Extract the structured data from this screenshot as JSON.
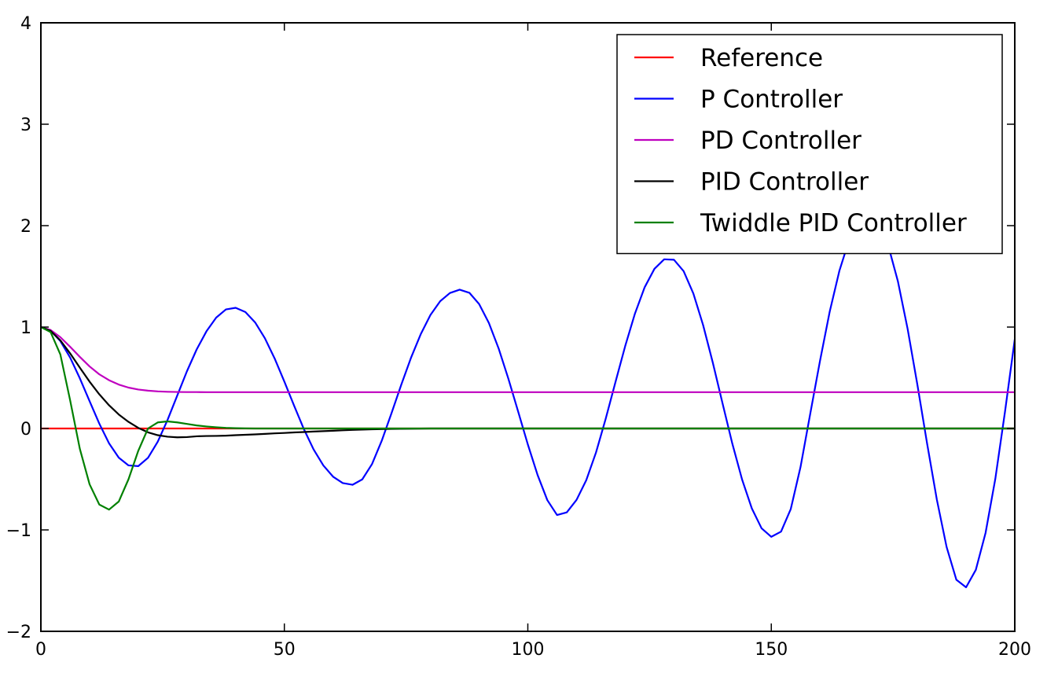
{
  "chart_data": {
    "type": "line",
    "title": "",
    "xlabel": "",
    "ylabel": "",
    "xlim": [
      0,
      200
    ],
    "ylim": [
      -2,
      4
    ],
    "xticks": [
      0,
      50,
      100,
      150,
      200
    ],
    "xtick_labels": [
      "0",
      "50",
      "100",
      "150",
      "200"
    ],
    "yticks": [
      -2,
      -1,
      0,
      1,
      2,
      3,
      4
    ],
    "ytick_labels": [
      "−2",
      "−1",
      "0",
      "1",
      "2",
      "3",
      "4"
    ],
    "grid": false,
    "legend_position": "top-right",
    "x": [
      0,
      2,
      4,
      6,
      8,
      10,
      12,
      14,
      16,
      18,
      20,
      22,
      24,
      26,
      28,
      30,
      32,
      34,
      36,
      38,
      40,
      42,
      44,
      46,
      48,
      50,
      52,
      54,
      56,
      58,
      60,
      62,
      64,
      66,
      68,
      70,
      72,
      74,
      76,
      78,
      80,
      82,
      84,
      86,
      88,
      90,
      92,
      94,
      96,
      98,
      100,
      102,
      104,
      106,
      108,
      110,
      112,
      114,
      116,
      118,
      120,
      122,
      124,
      126,
      128,
      130,
      132,
      134,
      136,
      138,
      140,
      142,
      144,
      146,
      148,
      150,
      152,
      154,
      156,
      158,
      160,
      162,
      164,
      166,
      168,
      170,
      172,
      174,
      176,
      178,
      180,
      182,
      184,
      186,
      188,
      190,
      192,
      194,
      196,
      198,
      200
    ],
    "series": [
      {
        "name": "Reference",
        "color": "#ff0000",
        "values": [
          0,
          0,
          0,
          0,
          0,
          0,
          0,
          0,
          0,
          0,
          0,
          0,
          0,
          0,
          0,
          0,
          0,
          0,
          0,
          0,
          0,
          0,
          0,
          0,
          0,
          0,
          0,
          0,
          0,
          0,
          0,
          0,
          0,
          0,
          0,
          0,
          0,
          0,
          0,
          0,
          0,
          0,
          0,
          0,
          0,
          0,
          0,
          0,
          0,
          0,
          0,
          0,
          0,
          0,
          0,
          0,
          0,
          0,
          0,
          0,
          0,
          0,
          0,
          0,
          0,
          0,
          0,
          0,
          0,
          0,
          0,
          0,
          0,
          0,
          0,
          0,
          0,
          0,
          0,
          0,
          0,
          0,
          0,
          0,
          0,
          0,
          0,
          0,
          0,
          0,
          0,
          0,
          0,
          0,
          0,
          0,
          0,
          0,
          0,
          0,
          0
        ]
      },
      {
        "name": "P Controller",
        "color": "#0000ff",
        "values": [
          1.0,
          0.965,
          0.862,
          0.7,
          0.495,
          0.27,
          0.048,
          -0.146,
          -0.288,
          -0.364,
          -0.371,
          -0.289,
          -0.13,
          0.083,
          0.324,
          0.565,
          0.78,
          0.958,
          1.093,
          1.174,
          1.19,
          1.148,
          1.046,
          0.89,
          0.691,
          0.463,
          0.225,
          -0.005,
          -0.206,
          -0.364,
          -0.475,
          -0.538,
          -0.555,
          -0.502,
          -0.351,
          -0.121,
          0.15,
          0.43,
          0.696,
          0.929,
          1.119,
          1.255,
          1.336,
          1.369,
          1.338,
          1.227,
          1.041,
          0.79,
          0.492,
          0.169,
          -0.157,
          -0.458,
          -0.706,
          -0.853,
          -0.827,
          -0.704,
          -0.51,
          -0.237,
          0.097,
          0.458,
          0.813,
          1.133,
          1.393,
          1.574,
          1.668,
          1.664,
          1.551,
          1.33,
          1.019,
          0.647,
          0.245,
          -0.15,
          -0.503,
          -0.788,
          -0.984,
          -1.068,
          -1.017,
          -0.794,
          -0.38,
          0.146,
          0.666,
          1.153,
          1.558,
          1.861,
          2.044,
          2.1,
          2.023,
          1.806,
          1.451,
          0.981,
          0.432,
          -0.15,
          -0.702,
          -1.168,
          -1.491,
          -1.566,
          -1.394,
          -1.03,
          -0.498,
          0.168,
          0.88
        ]
      },
      {
        "name": "PD Controller",
        "color": "#bf00bf",
        "values": [
          1.0,
          0.971,
          0.9,
          0.806,
          0.706,
          0.612,
          0.534,
          0.476,
          0.433,
          0.403,
          0.384,
          0.373,
          0.366,
          0.362,
          0.36,
          0.359,
          0.359,
          0.358,
          0.358,
          0.358,
          0.358,
          0.358,
          0.358,
          0.358,
          0.358,
          0.358,
          0.358,
          0.358,
          0.358,
          0.358,
          0.358,
          0.358,
          0.358,
          0.358,
          0.358,
          0.358,
          0.358,
          0.358,
          0.358,
          0.358,
          0.358,
          0.358,
          0.358,
          0.358,
          0.358,
          0.358,
          0.358,
          0.358,
          0.358,
          0.358,
          0.358,
          0.358,
          0.358,
          0.358,
          0.358,
          0.358,
          0.358,
          0.358,
          0.358,
          0.358,
          0.358,
          0.358,
          0.358,
          0.358,
          0.358,
          0.358,
          0.358,
          0.358,
          0.358,
          0.358,
          0.358,
          0.358,
          0.358,
          0.358,
          0.358,
          0.358,
          0.358,
          0.358,
          0.358,
          0.358,
          0.358,
          0.358,
          0.358,
          0.358,
          0.358,
          0.358,
          0.358,
          0.358,
          0.358,
          0.358,
          0.358,
          0.358,
          0.358,
          0.358,
          0.358,
          0.358,
          0.358,
          0.358,
          0.358,
          0.358,
          0.358
        ]
      },
      {
        "name": "PID Controller",
        "color": "#000000",
        "values": [
          1.0,
          0.962,
          0.869,
          0.741,
          0.6,
          0.462,
          0.337,
          0.229,
          0.138,
          0.065,
          0.006,
          -0.038,
          -0.066,
          -0.081,
          -0.087,
          -0.085,
          -0.077,
          -0.074,
          -0.073,
          -0.071,
          -0.066,
          -0.062,
          -0.058,
          -0.053,
          -0.048,
          -0.044,
          -0.039,
          -0.035,
          -0.03,
          -0.026,
          -0.022,
          -0.018,
          -0.014,
          -0.011,
          -0.008,
          -0.006,
          -0.004,
          -0.003,
          -0.002,
          -0.001,
          0.0,
          0.0,
          0.0,
          0.0,
          0.0,
          0.0,
          0.0,
          0.0,
          0.0,
          0.0,
          0.0,
          0.0,
          0.0,
          0.0,
          0.0,
          0.0,
          0.0,
          0.0,
          0.0,
          0.0,
          0.0,
          0.0,
          0.0,
          0.0,
          0.0,
          0.0,
          0.0,
          0.0,
          0.0,
          0.0,
          0.0,
          0.0,
          0.0,
          0.0,
          0.0,
          0.0,
          0.0,
          0.0,
          0.0,
          0.0,
          0.0,
          0.0,
          0.0,
          0.0,
          0.0,
          0.0,
          0.0,
          0.0,
          0.0,
          0.0,
          0.0,
          0.0,
          0.0,
          0.0,
          0.0,
          0.0,
          0.0,
          0.0,
          0.0,
          0.0,
          0.0
        ]
      },
      {
        "name": "Twiddle PID Controller",
        "color": "#008000",
        "values": [
          1.0,
          0.95,
          0.73,
          0.28,
          -0.2,
          -0.55,
          -0.75,
          -0.8,
          -0.72,
          -0.5,
          -0.22,
          0.0,
          0.06,
          0.07,
          0.06,
          0.045,
          0.03,
          0.02,
          0.012,
          0.006,
          0.003,
          0.001,
          0.0,
          0.0,
          0.0,
          0.0,
          0.0,
          0.0,
          0.0,
          0.0,
          0.0,
          0.0,
          0.0,
          0.0,
          0.0,
          0.0,
          0.0,
          0.0,
          0.0,
          0.0,
          0.0,
          0.0,
          0.0,
          0.0,
          0.0,
          0.0,
          0.0,
          0.0,
          0.0,
          0.0,
          0.0,
          0.0,
          0.0,
          0.0,
          0.0,
          0.0,
          0.0,
          0.0,
          0.0,
          0.0,
          0.0,
          0.0,
          0.0,
          0.0,
          0.0,
          0.0,
          0.0,
          0.0,
          0.0,
          0.0,
          0.0,
          0.0,
          0.0,
          0.0,
          0.0,
          0.0,
          0.0,
          0.0,
          0.0,
          0.0,
          0.0,
          0.0,
          0.0,
          0.0,
          0.0,
          0.0,
          0.0,
          0.0,
          0.0,
          0.0,
          0.0,
          0.0,
          0.0,
          0.0,
          0.0,
          0.0,
          0.0,
          0.0,
          0.0,
          0.0,
          0.0
        ]
      }
    ]
  }
}
